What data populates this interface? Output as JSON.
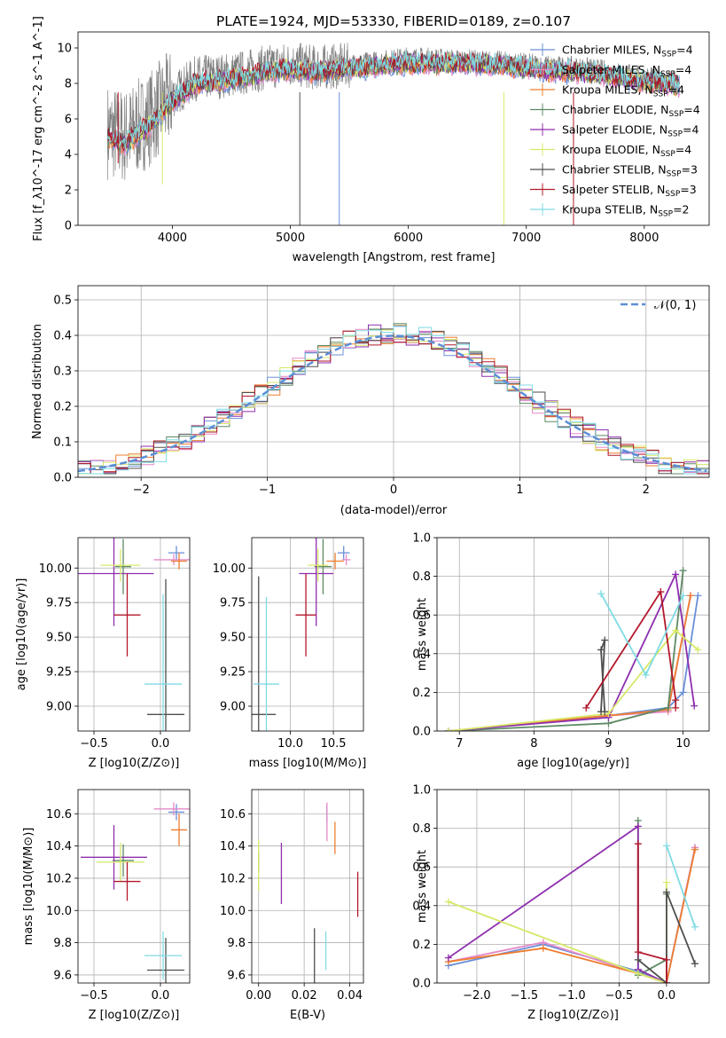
{
  "chart_data": [
    {
      "type": "line",
      "title": "PLATE=1924, MJD=53330, FIBERID=0189, z=0.107",
      "xlabel": "wavelength [Angstrom, rest frame]",
      "ylabel": "Flux [f_λ10^-17 erg cm^-2 s^-1 A^-1]",
      "xlim": [
        3200,
        8550
      ],
      "ylim": [
        0,
        10.9
      ],
      "xticks": [
        "4000",
        "5000",
        "6000",
        "7000",
        "8000"
      ],
      "yticks": [
        "0",
        "2",
        "4",
        "6",
        "8",
        "10"
      ],
      "legend_position": "right",
      "legend": [
        {
          "label": "Chabrier MILES, N",
          "sub": "SSP",
          "suffix": "=4",
          "color": "#6a8fd8"
        },
        {
          "label": "Salpeter MILES, N",
          "sub": "SSP",
          "suffix": "=4",
          "color": "#e58ac9"
        },
        {
          "label": "Kroupa MILES, N",
          "sub": "SSP",
          "suffix": "=4",
          "color": "#ee7d2f"
        },
        {
          "label": "Chabrier ELODIE, N",
          "sub": "SSP",
          "suffix": "=4",
          "color": "#5e8a64"
        },
        {
          "label": "Salpeter ELODIE, N",
          "sub": "SSP",
          "suffix": "=4",
          "color": "#8e2fae"
        },
        {
          "label": "Kroupa ELODIE, N",
          "sub": "SSP",
          "suffix": "=4",
          "color": "#d8e86a"
        },
        {
          "label": "Chabrier STELIB, N",
          "sub": "SSP",
          "suffix": "=3",
          "color": "#4f4f4f"
        },
        {
          "label": "Salpeter STELIB, N",
          "sub": "SSP",
          "suffix": "=3",
          "color": "#b2182b"
        },
        {
          "label": "Kroupa STELIB, N",
          "sub": "SSP",
          "suffix": "=2",
          "color": "#7fdbe3"
        }
      ],
      "series_shape": {
        "x": [
          3450,
          3600,
          3800,
          4000,
          4200,
          4400,
          4600,
          4800,
          5000,
          5200,
          5500,
          5800,
          6000,
          6300,
          6600,
          6900,
          7200,
          7500,
          7800,
          8000,
          8300
        ],
        "model_flux": [
          5.0,
          4.6,
          5.6,
          7.0,
          8.0,
          8.1,
          8.3,
          8.6,
          8.8,
          8.6,
          8.8,
          9.0,
          9.1,
          9.1,
          9.1,
          8.9,
          8.7,
          8.6,
          8.3,
          8.1,
          7.9
        ],
        "observed_flux": [
          5.3,
          5.0,
          6.0,
          7.3,
          8.3,
          8.4,
          8.6,
          8.9,
          9.1,
          8.9,
          9.0,
          9.2,
          9.4,
          9.3,
          9.2,
          9.1,
          8.9,
          8.8,
          8.5,
          8.3,
          8.0
        ],
        "observed_color": "#808080"
      }
    },
    {
      "type": "histogram",
      "xlabel": "(data-model)/error",
      "ylabel": "Normed distribution",
      "xlim": [
        -2.5,
        2.5
      ],
      "ylim": [
        0,
        0.54
      ],
      "xticks": [
        "−2",
        "−1",
        "0",
        "1",
        "2"
      ],
      "yticks": [
        "0.0",
        "0.1",
        "0.2",
        "0.3",
        "0.4",
        "0.5"
      ],
      "grid": true,
      "bin_width": 0.1,
      "reference": {
        "label": "𝒩(0, 1)",
        "color": "#5b8fd6",
        "style": "dashed",
        "mean": 0,
        "sigma": 1
      },
      "legend_position": "top-right"
    },
    {
      "type": "errorbar",
      "xlabel": "Z [log10(Z/Z⊙)]",
      "ylabel": "age  [log10(age/yr)]",
      "xlim": [
        -0.62,
        0.22
      ],
      "ylim": [
        8.82,
        10.22
      ],
      "xticks": [
        "−0.5",
        "0.0"
      ],
      "yticks": [
        "9.00",
        "9.25",
        "9.50",
        "9.75",
        "10.00"
      ],
      "grid": true,
      "points": [
        {
          "color": "#6a8fd8",
          "x": 0.12,
          "y": 10.11,
          "ex": 0.06,
          "ey": 0.05
        },
        {
          "color": "#e58ac9",
          "x": 0.1,
          "y": 10.06,
          "ex": 0.15,
          "ey": 0.04
        },
        {
          "color": "#ee7d2f",
          "x": 0.14,
          "y": 10.05,
          "ex": 0.06,
          "ey": 0.06
        },
        {
          "color": "#5e8a64",
          "x": -0.28,
          "y": 10.01,
          "ex": 0.06,
          "ey": 0.2
        },
        {
          "color": "#8e2fae",
          "x": -0.35,
          "y": 9.96,
          "ex": 0.3,
          "ey": 0.38
        },
        {
          "color": "#d8e86a",
          "x": -0.3,
          "y": 10.02,
          "ex": 0.15,
          "ey": 0.12
        },
        {
          "color": "#4f4f4f",
          "x": 0.04,
          "y": 8.94,
          "ex": 0.14,
          "ey": 0.98
        },
        {
          "color": "#b2182b",
          "x": -0.25,
          "y": 9.66,
          "ex": 0.1,
          "ey": 0.3
        },
        {
          "color": "#7fdbe3",
          "x": 0.02,
          "y": 9.16,
          "ex": 0.14,
          "ey": 0.65
        }
      ]
    },
    {
      "type": "errorbar",
      "xlabel": "mass [log10(M/M⊙)]",
      "ylabel": "",
      "xlim": [
        9.55,
        10.85
      ],
      "ylim": [
        8.82,
        10.22
      ],
      "xticks": [
        "10.0",
        "10.5"
      ],
      "yticks": [
        "9.00",
        "9.25",
        "9.50",
        "9.75",
        "10.00"
      ],
      "grid": true,
      "points": [
        {
          "color": "#6a8fd8",
          "x": 10.62,
          "y": 10.11,
          "ex": 0.07,
          "ey": 0.05
        },
        {
          "color": "#e58ac9",
          "x": 10.65,
          "y": 10.06,
          "ex": 0.05,
          "ey": 0.04
        },
        {
          "color": "#ee7d2f",
          "x": 10.52,
          "y": 10.05,
          "ex": 0.1,
          "ey": 0.06
        },
        {
          "color": "#5e8a64",
          "x": 10.38,
          "y": 10.01,
          "ex": 0.1,
          "ey": 0.2
        },
        {
          "color": "#8e2fae",
          "x": 10.3,
          "y": 9.96,
          "ex": 0.2,
          "ey": 0.38
        },
        {
          "color": "#d8e86a",
          "x": 10.32,
          "y": 10.02,
          "ex": 0.12,
          "ey": 0.12
        },
        {
          "color": "#4f4f4f",
          "x": 9.63,
          "y": 8.94,
          "ex": 0.2,
          "ey": 1.0
        },
        {
          "color": "#b2182b",
          "x": 10.18,
          "y": 9.66,
          "ex": 0.12,
          "ey": 0.3
        },
        {
          "color": "#7fdbe3",
          "x": 9.72,
          "y": 9.16,
          "ex": 0.15,
          "ey": 0.63
        }
      ]
    },
    {
      "type": "line",
      "xlabel": "age  [log10(age/yr)]",
      "ylabel": "mass weight",
      "xlim": [
        6.7,
        10.35
      ],
      "ylim": [
        0,
        1.0
      ],
      "xticks": [
        "7",
        "8",
        "9",
        "10"
      ],
      "yticks": [
        "0.0",
        "0.2",
        "0.4",
        "0.6",
        "0.8",
        "1.0"
      ],
      "grid": true,
      "series": [
        {
          "color": "#6a8fd8",
          "x": [
            6.85,
            9.0,
            9.8,
            10.0,
            10.2
          ],
          "y": [
            0.0,
            0.08,
            0.12,
            0.2,
            0.7
          ]
        },
        {
          "color": "#e58ac9",
          "x": [
            6.85,
            9.0,
            9.8,
            10.1
          ],
          "y": [
            0.0,
            0.08,
            0.1,
            0.7
          ]
        },
        {
          "color": "#ee7d2f",
          "x": [
            6.85,
            9.0,
            9.8,
            10.1
          ],
          "y": [
            0.0,
            0.08,
            0.11,
            0.7
          ]
        },
        {
          "color": "#5e8a64",
          "x": [
            6.85,
            9.0,
            9.8,
            10.0
          ],
          "y": [
            0.0,
            0.04,
            0.12,
            0.83
          ]
        },
        {
          "color": "#8e2fae",
          "x": [
            6.85,
            9.0,
            9.9,
            10.15
          ],
          "y": [
            0.0,
            0.07,
            0.81,
            0.13
          ]
        },
        {
          "color": "#d8e86a",
          "x": [
            6.85,
            9.0,
            9.9,
            10.2
          ],
          "y": [
            0.0,
            0.09,
            0.52,
            0.42
          ]
        },
        {
          "color": "#4f4f4f",
          "x": [
            8.9,
            8.95,
            8.9,
            8.95
          ],
          "y": [
            0.1,
            0.47,
            0.42,
            0.1
          ]
        },
        {
          "color": "#b2182b",
          "x": [
            8.7,
            9.7,
            9.9,
            9.9
          ],
          "y": [
            0.12,
            0.72,
            0.16,
            0.12
          ]
        },
        {
          "color": "#7fdbe3",
          "x": [
            8.9,
            9.5,
            10.0
          ],
          "y": [
            0.71,
            0.29,
            0.7
          ]
        }
      ]
    },
    {
      "type": "errorbar",
      "xlabel": "Z [log10(Z/Z⊙)]",
      "ylabel": "mass [log10(M/M⊙)]",
      "xlim": [
        -0.62,
        0.22
      ],
      "ylim": [
        9.55,
        10.75
      ],
      "xticks": [
        "−0.5",
        "0.0"
      ],
      "yticks": [
        "9.6",
        "9.8",
        "10.0",
        "10.2",
        "10.4",
        "10.6"
      ],
      "grid": true,
      "points": [
        {
          "color": "#6a8fd8",
          "x": 0.12,
          "y": 10.61,
          "ex": 0.06,
          "ey": 0.05
        },
        {
          "color": "#e58ac9",
          "x": 0.1,
          "y": 10.63,
          "ex": 0.15,
          "ey": 0.04
        },
        {
          "color": "#ee7d2f",
          "x": 0.14,
          "y": 10.5,
          "ex": 0.06,
          "ey": 0.1
        },
        {
          "color": "#5e8a64",
          "x": -0.28,
          "y": 10.31,
          "ex": 0.08,
          "ey": 0.1
        },
        {
          "color": "#8e2fae",
          "x": -0.35,
          "y": 10.33,
          "ex": 0.25,
          "ey": 0.2
        },
        {
          "color": "#d8e86a",
          "x": -0.3,
          "y": 10.3,
          "ex": 0.18,
          "ey": 0.12
        },
        {
          "color": "#4f4f4f",
          "x": 0.04,
          "y": 9.63,
          "ex": 0.14,
          "ey": 0.2
        },
        {
          "color": "#b2182b",
          "x": -0.25,
          "y": 10.18,
          "ex": 0.1,
          "ey": 0.12
        },
        {
          "color": "#7fdbe3",
          "x": 0.02,
          "y": 9.72,
          "ex": 0.14,
          "ey": 0.15
        }
      ]
    },
    {
      "type": "errorbar",
      "xlabel": "E(B-V)",
      "ylabel": "",
      "xlim": [
        -0.003,
        0.046
      ],
      "ylim": [
        9.55,
        10.75
      ],
      "xticks": [
        "0.00",
        "0.02",
        "0.04"
      ],
      "yticks": [
        "9.6",
        "9.8",
        "10.0",
        "10.2",
        "10.4",
        "10.6"
      ],
      "grid": true,
      "points": [
        {
          "color": "#6a8fd8",
          "x": 0.03,
          "y": 10.6,
          "ey": 0.05
        },
        {
          "color": "#e58ac9",
          "x": 0.03,
          "y": 10.55,
          "ey": 0.12
        },
        {
          "color": "#ee7d2f",
          "x": 0.0335,
          "y": 10.45,
          "ey": 0.1
        },
        {
          "color": "#5e8a64",
          "x": 0.0,
          "y": 10.3,
          "ey": 0.06
        },
        {
          "color": "#8e2fae",
          "x": 0.01,
          "y": 10.23,
          "ey": 0.19
        },
        {
          "color": "#d8e86a",
          "x": 0.0,
          "y": 10.28,
          "ey": 0.16
        },
        {
          "color": "#4f4f4f",
          "x": 0.0245,
          "y": 9.7,
          "ey": 0.19
        },
        {
          "color": "#b2182b",
          "x": 0.0435,
          "y": 10.1,
          "ey": 0.14
        },
        {
          "color": "#7fdbe3",
          "x": 0.0295,
          "y": 9.75,
          "ey": 0.12
        }
      ]
    },
    {
      "type": "line",
      "xlabel": "Z [log10(Z/Z⊙)]",
      "ylabel": "mass weight",
      "xlim": [
        -2.42,
        0.45
      ],
      "ylim": [
        0,
        1.0
      ],
      "xticks": [
        "−2.0",
        "−1.5",
        "−1.0",
        "−0.5",
        "0.0"
      ],
      "yticks": [
        "0.0",
        "0.2",
        "0.4",
        "0.6",
        "0.8",
        "1.0"
      ],
      "grid": true,
      "series": [
        {
          "color": "#6a8fd8",
          "x": [
            -2.3,
            -1.3,
            -0.3,
            0.0,
            0.3
          ],
          "y": [
            0.09,
            0.2,
            0.06,
            0.0,
            0.7
          ]
        },
        {
          "color": "#e58ac9",
          "x": [
            -2.3,
            -1.3,
            -0.3,
            0.0,
            0.3
          ],
          "y": [
            0.11,
            0.21,
            0.05,
            0.0,
            0.7
          ]
        },
        {
          "color": "#ee7d2f",
          "x": [
            -2.3,
            -1.3,
            -0.3,
            0.0,
            0.3
          ],
          "y": [
            0.11,
            0.18,
            0.05,
            0.0,
            0.69
          ]
        },
        {
          "color": "#5e8a64",
          "x": [
            -0.3,
            -0.3,
            0.0,
            0.0
          ],
          "y": [
            0.84,
            0.04,
            0.12,
            0.46
          ]
        },
        {
          "color": "#8e2fae",
          "x": [
            -2.3,
            -0.3,
            -0.3,
            0.0
          ],
          "y": [
            0.13,
            0.81,
            0.07,
            0.0
          ]
        },
        {
          "color": "#d8e86a",
          "x": [
            -2.3,
            -0.3,
            0.0,
            0.0
          ],
          "y": [
            0.42,
            0.05,
            0.0,
            0.52
          ]
        },
        {
          "color": "#4f4f4f",
          "x": [
            -0.3,
            0.0,
            0.0,
            0.3
          ],
          "y": [
            0.12,
            0.0,
            0.47,
            0.1
          ]
        },
        {
          "color": "#b2182b",
          "x": [
            -0.3,
            -0.3,
            0.0,
            0.0
          ],
          "y": [
            0.72,
            0.16,
            0.12,
            0.0
          ]
        },
        {
          "color": "#7fdbe3",
          "x": [
            0.0,
            0.3
          ],
          "y": [
            0.71,
            0.29
          ]
        }
      ]
    }
  ]
}
